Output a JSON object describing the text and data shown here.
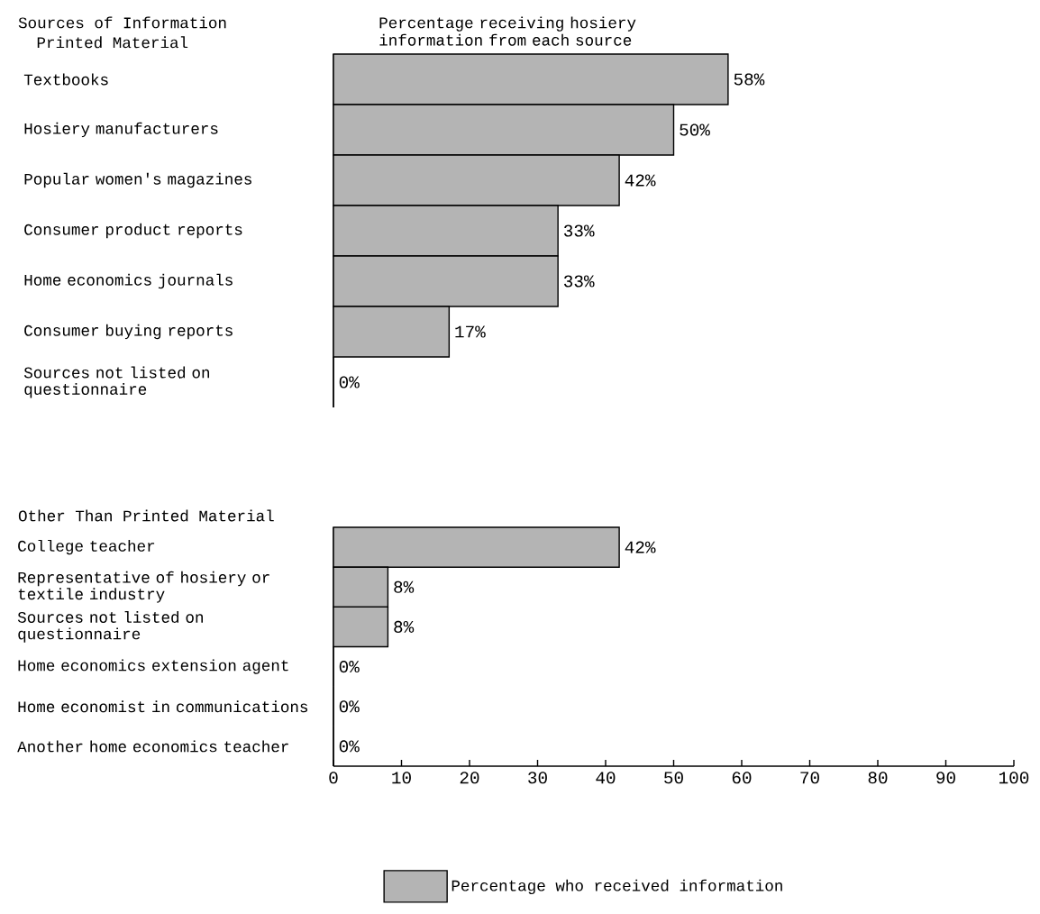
{
  "chart_data": [
    {
      "type": "bar",
      "orientation": "horizontal",
      "title": "Printed Material",
      "annotations": [
        "Sources of Information",
        "Percentage receiving hosiery information from each source"
      ],
      "categories": [
        "Textbooks",
        "Hosiery manufacturers",
        "Popular women's magazines",
        "Consumer product reports",
        "Home economics journals",
        "Consumer buying reports",
        "Sources not listed on questionnaire"
      ],
      "values": [
        58,
        50,
        42,
        33,
        33,
        17,
        0
      ],
      "value_labels": [
        "58%",
        "50%",
        "42%",
        "33%",
        "33%",
        "17%",
        "0%"
      ],
      "color": "#b4b4b4",
      "xlim": [
        0,
        100
      ],
      "tick_labels": "y"
    },
    {
      "type": "bar",
      "orientation": "horizontal",
      "title": "Other Than Printed Material",
      "categories": [
        "College teacher",
        "Representative of hosiery or textile industry",
        "Sources not listed on questionnaire",
        "Home economics extension agent",
        "Home economist in communications",
        "Another home economics teacher"
      ],
      "series": [
        {
          "name": "Percentage who received information",
          "color": "#b4b4b4",
          "values": [
            42,
            8,
            8,
            0,
            0,
            0
          ],
          "value_labels": [
            "42%",
            "8%",
            "8%",
            "0%",
            "0%",
            "0%"
          ]
        }
      ],
      "xlim": [
        0,
        100
      ],
      "xticks": [
        0,
        10,
        20,
        30,
        40,
        50,
        60,
        70,
        80,
        90,
        100
      ],
      "legend": "bottom"
    }
  ]
}
